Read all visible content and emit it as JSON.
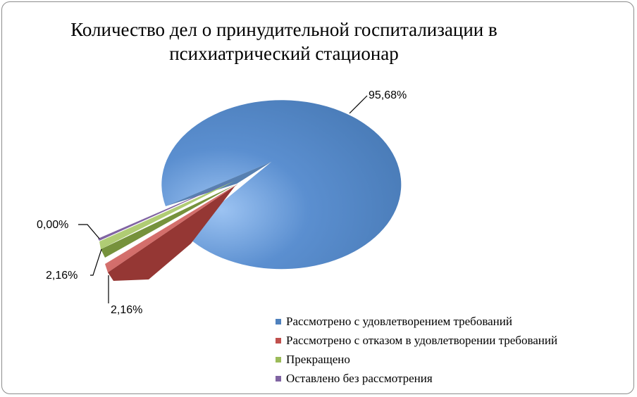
{
  "chart_data": {
    "type": "pie",
    "title": "Количество дел о принудительной госпитализации в психиатрический стационар",
    "categories": [
      "Рассмотрено с удовлетворением требований",
      "Рассмотрено с отказом в удовлетворении требований",
      "Прекращено",
      "Оставлено без рассмотрения"
    ],
    "values": [
      95.68,
      2.16,
      2.16,
      0.0
    ],
    "data_labels": [
      "95,68%",
      "2,16%",
      "2,16%",
      "0,00%"
    ],
    "colors": [
      "#4f81bd",
      "#c0504d",
      "#9bbb59",
      "#8064a2"
    ],
    "legend_position": "bottom-right",
    "style": "3d-exploded"
  }
}
